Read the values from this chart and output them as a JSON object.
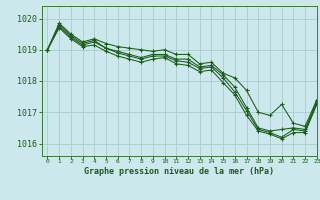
{
  "title": "Graphe pression niveau de la mer (hPa)",
  "background_color": "#cce8ec",
  "grid_color": "#aacccc",
  "line_color": "#1a5c1a",
  "xlim": [
    -0.5,
    23
  ],
  "ylim": [
    1015.6,
    1020.4
  ],
  "yticks": [
    1016,
    1017,
    1018,
    1019,
    1020
  ],
  "xticks": [
    0,
    1,
    2,
    3,
    4,
    5,
    6,
    7,
    8,
    9,
    10,
    11,
    12,
    13,
    14,
    15,
    16,
    17,
    18,
    19,
    20,
    21,
    22,
    23
  ],
  "series": [
    [
      1019.0,
      1019.85,
      1019.5,
      1019.25,
      1019.35,
      1019.2,
      1019.1,
      1019.05,
      1019.0,
      1018.95,
      1019.0,
      1018.85,
      1018.85,
      1018.55,
      1018.6,
      1018.25,
      1018.1,
      1017.7,
      1017.0,
      1016.9,
      1017.25,
      1016.65,
      1016.55,
      1017.4
    ],
    [
      1019.0,
      1019.8,
      1019.45,
      1019.2,
      1019.3,
      1019.05,
      1018.95,
      1018.85,
      1018.75,
      1018.85,
      1018.85,
      1018.7,
      1018.7,
      1018.45,
      1018.5,
      1018.2,
      1017.8,
      1017.15,
      1016.5,
      1016.4,
      1016.45,
      1016.5,
      1016.45,
      1017.35
    ],
    [
      1019.0,
      1019.75,
      1019.4,
      1019.15,
      1019.25,
      1019.05,
      1018.9,
      1018.8,
      1018.7,
      1018.8,
      1018.8,
      1018.65,
      1018.6,
      1018.4,
      1018.45,
      1018.1,
      1017.65,
      1017.05,
      1016.45,
      1016.35,
      1016.2,
      1016.45,
      1016.4,
      1017.3
    ],
    [
      1019.0,
      1019.7,
      1019.35,
      1019.1,
      1019.15,
      1018.95,
      1018.8,
      1018.7,
      1018.6,
      1018.7,
      1018.75,
      1018.55,
      1018.5,
      1018.3,
      1018.35,
      1017.95,
      1017.55,
      1016.9,
      1016.4,
      1016.3,
      1016.15,
      1016.35,
      1016.35,
      1017.25
    ]
  ]
}
